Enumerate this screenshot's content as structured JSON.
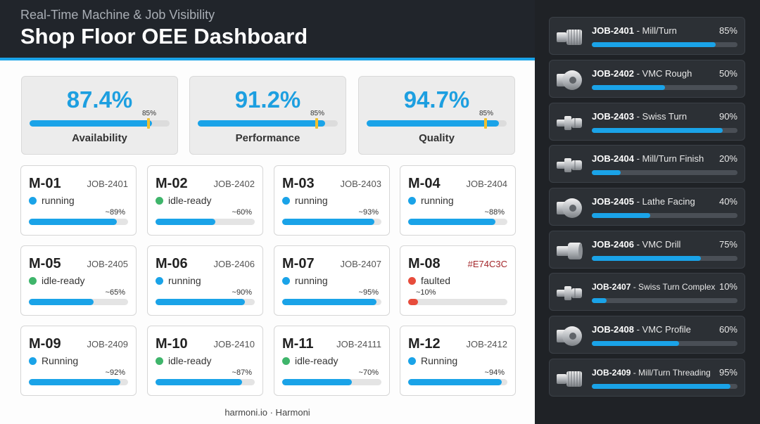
{
  "header": {
    "subtitle": "Real-Time Machine & Job Visibility",
    "title": "Shop Floor OEE Dashboard"
  },
  "kpis": [
    {
      "value": "87.4%",
      "label": "Availability",
      "target": "85%",
      "fraction": 0.874,
      "target_fraction": 0.85
    },
    {
      "value": "91.2%",
      "label": "Performance",
      "target": "85%",
      "fraction": 0.912,
      "target_fraction": 0.85
    },
    {
      "value": "94.7%",
      "label": "Quality",
      "target": "85%",
      "fraction": 0.947,
      "target_fraction": 0.85
    }
  ],
  "machines": [
    {
      "id": "M-01",
      "job": "JOB-2401",
      "status": "running",
      "status_color": "#1aa3e8",
      "pct": "~89%",
      "fraction": 0.89
    },
    {
      "id": "M-02",
      "job": "JOB-2402",
      "status": "idle-ready",
      "status_color": "#3fb56b",
      "pct": "~60%",
      "fraction": 0.6
    },
    {
      "id": "M-03",
      "job": "JOB-2403",
      "status": "running",
      "status_color": "#1aa3e8",
      "pct": "~93%",
      "fraction": 0.93
    },
    {
      "id": "M-04",
      "job": "JOB-2404",
      "status": "running",
      "status_color": "#1aa3e8",
      "pct": "~88%",
      "fraction": 0.88
    },
    {
      "id": "M-05",
      "job": "JOB-2405",
      "status": "idle-ready",
      "status_color": "#3fb56b",
      "pct": "~65%",
      "fraction": 0.65
    },
    {
      "id": "M-06",
      "job": "JOB-2406",
      "status": "running",
      "status_color": "#1aa3e8",
      "pct": "~90%",
      "fraction": 0.9
    },
    {
      "id": "M-07",
      "job": "JOB-2407",
      "status": "running",
      "status_color": "#1aa3e8",
      "pct": "~95%",
      "fraction": 0.95
    },
    {
      "id": "M-08",
      "job": "#E74C3C",
      "status": "faulted",
      "status_color": "#e74c3c",
      "pct": "~10%",
      "fraction": 0.1,
      "fault": true
    },
    {
      "id": "M-09",
      "job": "JOB-2409",
      "status": "Running",
      "status_color": "#1aa3e8",
      "pct": "~92%",
      "fraction": 0.92
    },
    {
      "id": "M-10",
      "job": "JOB-2410",
      "status": "idle-ready",
      "status_color": "#3fb56b",
      "pct": "~87%",
      "fraction": 0.87
    },
    {
      "id": "M-11",
      "job": "JOB-24111",
      "status": "idle-ready",
      "status_color": "#3fb56b",
      "pct": "~70%",
      "fraction": 0.7
    },
    {
      "id": "M-12",
      "job": "JOB-2412",
      "status": "Running",
      "status_color": "#1aa3e8",
      "pct": "~94%",
      "fraction": 0.94
    }
  ],
  "jobs": [
    {
      "id": "JOB-2401",
      "desc": " - Mill/Turn",
      "pct": "85%",
      "fraction": 0.85,
      "icon": "threaded-part-icon"
    },
    {
      "id": "JOB-2402",
      "desc": " - VMC Rough",
      "pct": "50%",
      "fraction": 0.5,
      "icon": "block-part-icon"
    },
    {
      "id": "JOB-2403",
      "desc": " - Swiss Turn",
      "pct": "90%",
      "fraction": 0.9,
      "icon": "turned-part-icon"
    },
    {
      "id": "JOB-2404",
      "desc": " - Mill/Turn Finish",
      "pct": "20%",
      "fraction": 0.2,
      "icon": "turned-part-icon"
    },
    {
      "id": "JOB-2405",
      "desc": " - Lathe Facing",
      "pct": "40%",
      "fraction": 0.4,
      "icon": "block-part-icon"
    },
    {
      "id": "JOB-2406",
      "desc": " - VMC Drill",
      "pct": "75%",
      "fraction": 0.75,
      "icon": "cylinder-part-icon"
    },
    {
      "id": "JOB-2407",
      "desc": " - Swiss Turn Complex",
      "pct": "10%",
      "fraction": 0.1,
      "icon": "turned-part-icon"
    },
    {
      "id": "JOB-2408",
      "desc": " - VMC Profile",
      "pct": "60%",
      "fraction": 0.6,
      "icon": "block-part-icon"
    },
    {
      "id": "JOB-2409",
      "desc": " - Mill/Turn Threading",
      "pct": "95%",
      "fraction": 0.95,
      "icon": "threaded-part-icon"
    }
  ],
  "footer": {
    "text": "harmoni.io · Harmoni"
  }
}
